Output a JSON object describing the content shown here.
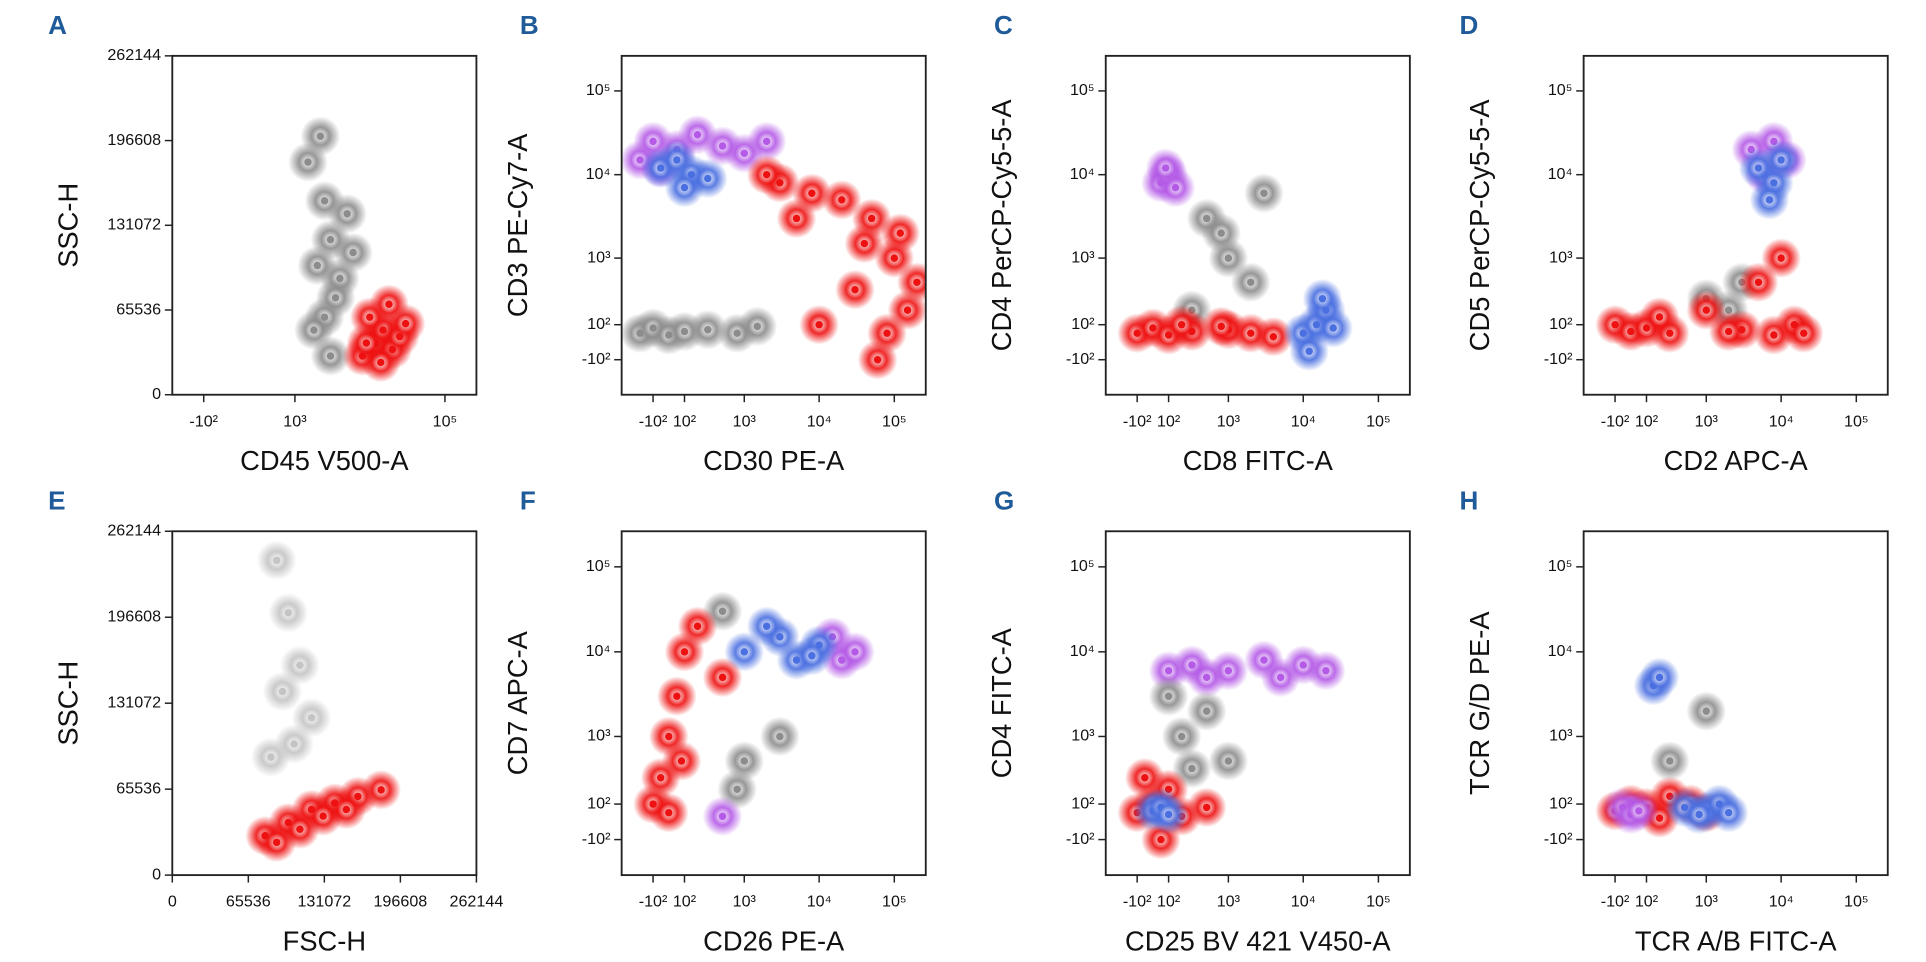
{
  "chart_data": [
    {
      "type": "scatter",
      "title": "A",
      "x_label": "CD45 V500-A",
      "y_label": "SSC-H",
      "xscale": "biexponential",
      "yscale": "linear",
      "xlim": [
        -400,
        262144
      ],
      "ylim": [
        0,
        262144
      ],
      "xticks": [
        {
          "value": -100,
          "label": "-10²"
        },
        {
          "value": 1000,
          "label": "10³"
        },
        {
          "value": 100000,
          "label": "10⁵"
        }
      ],
      "yticks": [
        0,
        65536,
        131072,
        196608,
        262144
      ],
      "series": [
        {
          "color": "#8c8c8c",
          "x": [
            1500,
            2500,
            3000,
            2000,
            4000,
            3500,
            2500,
            5000,
            1800,
            3000,
            6000,
            2200
          ],
          "y": [
            180000,
            150000,
            120000,
            100000,
            90000,
            75000,
            60000,
            140000,
            50000,
            30000,
            110000,
            200000
          ]
        },
        {
          "color": "#ee1111",
          "x": [
            8000,
            12000,
            15000,
            20000,
            10000,
            18000,
            25000,
            14000,
            30000,
            9000
          ],
          "y": [
            30000,
            40000,
            50000,
            35000,
            60000,
            70000,
            45000,
            25000,
            55000,
            40000
          ]
        }
      ]
    },
    {
      "type": "scatter",
      "title": "B",
      "x_label": "CD30 PE-A",
      "y_label": "CD3 PE-Cy7-A",
      "xscale": "biexponential",
      "yscale": "biexponential",
      "xlim": [
        -400,
        262144
      ],
      "ylim": [
        -400,
        262144
      ],
      "xticks": [
        {
          "value": -100,
          "label": "-10²"
        },
        {
          "value": 100,
          "label": "10²"
        },
        {
          "value": 1000,
          "label": "10³"
        },
        {
          "value": 10000,
          "label": "10⁴"
        },
        {
          "value": 100000,
          "label": "10⁵"
        }
      ],
      "yticks": [
        {
          "value": -100,
          "label": "-10²"
        },
        {
          "value": 100,
          "label": "10²"
        },
        {
          "value": 1000,
          "label": "10³"
        },
        {
          "value": 10000,
          "label": "10⁴"
        },
        {
          "value": 100000,
          "label": "10⁵"
        }
      ],
      "series": [
        {
          "color": "#b45ae6",
          "x": [
            -200,
            -100,
            50,
            200,
            500,
            1000,
            2000,
            -50
          ],
          "y": [
            15000,
            25000,
            20000,
            30000,
            22000,
            18000,
            25000,
            12000
          ]
        },
        {
          "color": "#4a6fe0",
          "x": [
            -50,
            50,
            150,
            300,
            100
          ],
          "y": [
            12000,
            15000,
            10000,
            9000,
            7000
          ]
        },
        {
          "color": "#8c8c8c",
          "x": [
            -200,
            -100,
            0,
            100,
            300,
            800,
            1500
          ],
          "y": [
            50,
            80,
            40,
            60,
            70,
            50,
            90
          ]
        },
        {
          "color": "#ee1111",
          "x": [
            3000,
            8000,
            20000,
            50000,
            100000,
            150000,
            5000,
            30000,
            80000,
            2000,
            10000,
            60000,
            120000,
            200000,
            40000
          ],
          "y": [
            8000,
            6000,
            5000,
            3000,
            1000,
            200,
            3000,
            400,
            50,
            10000,
            100,
            -100,
            2000,
            500,
            1500
          ]
        }
      ]
    },
    {
      "type": "scatter",
      "title": "C",
      "x_label": "CD8 FITC-A",
      "y_label": "CD4 PerCP-Cy5-5-A",
      "xscale": "biexponential",
      "yscale": "biexponential",
      "xlim": [
        -400,
        262144
      ],
      "ylim": [
        -400,
        262144
      ],
      "xticks": [
        {
          "value": -100,
          "label": "-10²"
        },
        {
          "value": 100,
          "label": "10²"
        },
        {
          "value": 1000,
          "label": "10³"
        },
        {
          "value": 10000,
          "label": "10⁴"
        },
        {
          "value": 100000,
          "label": "10⁵"
        }
      ],
      "yticks": [
        {
          "value": -100,
          "label": "-10²"
        },
        {
          "value": 100,
          "label": "10²"
        },
        {
          "value": 1000,
          "label": "10³"
        },
        {
          "value": 10000,
          "label": "10⁴"
        },
        {
          "value": 100000,
          "label": "10⁵"
        }
      ],
      "series": [
        {
          "color": "#b45ae6",
          "x": [
            50,
            100,
            150,
            80
          ],
          "y": [
            8000,
            10000,
            7000,
            12000
          ]
        },
        {
          "color": "#8c8c8c",
          "x": [
            500,
            1000,
            2000,
            300,
            3000,
            800
          ],
          "y": [
            3000,
            1000,
            500,
            200,
            6000,
            2000
          ]
        },
        {
          "color": "#ee1111",
          "x": [
            -100,
            0,
            100,
            300,
            1000,
            2000,
            4000,
            200,
            800
          ],
          "y": [
            50,
            80,
            40,
            60,
            70,
            50,
            30,
            100,
            90
          ]
        },
        {
          "color": "#4a6fe0",
          "x": [
            10000,
            15000,
            20000,
            12000,
            25000,
            18000
          ],
          "y": [
            50,
            100,
            200,
            -50,
            80,
            300
          ]
        }
      ]
    },
    {
      "type": "scatter",
      "title": "D",
      "x_label": "CD2 APC-A",
      "y_label": "CD5 PerCP-Cy5-5-A",
      "xscale": "biexponential",
      "yscale": "biexponential",
      "xlim": [
        -400,
        262144
      ],
      "ylim": [
        -400,
        262144
      ],
      "xticks": [
        {
          "value": -100,
          "label": "-10²"
        },
        {
          "value": 100,
          "label": "10²"
        },
        {
          "value": 1000,
          "label": "10³"
        },
        {
          "value": 10000,
          "label": "10⁴"
        },
        {
          "value": 100000,
          "label": "10⁵"
        }
      ],
      "yticks": [
        {
          "value": -100,
          "label": "-10²"
        },
        {
          "value": 100,
          "label": "10²"
        },
        {
          "value": 1000,
          "label": "10³"
        },
        {
          "value": 10000,
          "label": "10⁴"
        },
        {
          "value": 100000,
          "label": "10⁵"
        }
      ],
      "series": [
        {
          "color": "#b45ae6",
          "x": [
            4000,
            8000,
            12000,
            6000
          ],
          "y": [
            20000,
            25000,
            15000,
            10000
          ]
        },
        {
          "color": "#4a6fe0",
          "x": [
            5000,
            8000,
            10000,
            7000
          ],
          "y": [
            12000,
            8000,
            15000,
            5000
          ]
        },
        {
          "color": "#8c8c8c",
          "x": [
            1000,
            2000,
            3000
          ],
          "y": [
            300,
            200,
            500
          ]
        },
        {
          "color": "#ee1111",
          "x": [
            -100,
            0,
            100,
            300,
            1000,
            3000,
            8000,
            15000,
            20000,
            5000,
            10000,
            200,
            2000
          ],
          "y": [
            100,
            60,
            80,
            50,
            200,
            70,
            40,
            100,
            50,
            500,
            1000,
            150,
            60
          ]
        }
      ]
    },
    {
      "type": "scatter",
      "title": "E",
      "x_label": "FSC-H",
      "y_label": "SSC-H",
      "xscale": "linear",
      "yscale": "linear",
      "xlim": [
        0,
        262144
      ],
      "ylim": [
        0,
        262144
      ],
      "xticks": [
        0,
        65536,
        131072,
        196608,
        262144
      ],
      "yticks": [
        0,
        65536,
        131072,
        196608,
        262144
      ],
      "series": [
        {
          "color": "#c4c4c4",
          "x": [
            90000,
            100000,
            110000,
            95000,
            120000,
            105000,
            85000
          ],
          "y": [
            240000,
            200000,
            160000,
            140000,
            120000,
            100000,
            90000
          ]
        },
        {
          "color": "#ee1111",
          "x": [
            80000,
            100000,
            120000,
            140000,
            160000,
            180000,
            110000,
            130000,
            150000,
            90000
          ],
          "y": [
            30000,
            40000,
            50000,
            55000,
            60000,
            65000,
            35000,
            45000,
            50000,
            25000
          ]
        }
      ]
    },
    {
      "type": "scatter",
      "title": "F",
      "x_label": "CD26 PE-A",
      "y_label": "CD7 APC-A",
      "xscale": "biexponential",
      "yscale": "biexponential",
      "xlim": [
        -400,
        262144
      ],
      "ylim": [
        -400,
        262144
      ],
      "xticks": [
        {
          "value": -100,
          "label": "-10²"
        },
        {
          "value": 100,
          "label": "10²"
        },
        {
          "value": 1000,
          "label": "10³"
        },
        {
          "value": 10000,
          "label": "10⁴"
        },
        {
          "value": 100000,
          "label": "10⁵"
        }
      ],
      "yticks": [
        {
          "value": -100,
          "label": "-10²"
        },
        {
          "value": 100,
          "label": "10²"
        },
        {
          "value": 1000,
          "label": "10³"
        },
        {
          "value": 10000,
          "label": "10⁴"
        },
        {
          "value": 100000,
          "label": "10⁵"
        }
      ],
      "series": [
        {
          "color": "#8c8c8c",
          "x": [
            500,
            1000,
            3000,
            800
          ],
          "y": [
            30000,
            500,
            1000,
            200
          ]
        },
        {
          "color": "#b45ae6",
          "x": [
            20000,
            15000,
            30000,
            500
          ],
          "y": [
            8000,
            15000,
            10000,
            30
          ]
        },
        {
          "color": "#4a6fe0",
          "x": [
            1000,
            3000,
            5000,
            10000,
            2000,
            8000
          ],
          "y": [
            10000,
            15000,
            8000,
            12000,
            20000,
            9000
          ]
        },
        {
          "color": "#ee1111",
          "x": [
            -100,
            -50,
            0,
            50,
            100,
            200,
            500,
            0,
            80
          ],
          "y": [
            100,
            300,
            1000,
            3000,
            10000,
            20000,
            5000,
            50,
            500
          ]
        }
      ]
    },
    {
      "type": "scatter",
      "title": "G",
      "x_label": "CD25 BV 421 V450-A",
      "y_label": "CD4 FITC-A",
      "xscale": "biexponential",
      "yscale": "biexponential",
      "xlim": [
        -400,
        262144
      ],
      "ylim": [
        -400,
        262144
      ],
      "xticks": [
        {
          "value": -100,
          "label": "-10²"
        },
        {
          "value": 100,
          "label": "10²"
        },
        {
          "value": 1000,
          "label": "10³"
        },
        {
          "value": 10000,
          "label": "10⁴"
        },
        {
          "value": 100000,
          "label": "10⁵"
        }
      ],
      "yticks": [
        {
          "value": -100,
          "label": "-10²"
        },
        {
          "value": 100,
          "label": "10²"
        },
        {
          "value": 1000,
          "label": "10³"
        },
        {
          "value": 10000,
          "label": "10⁴"
        },
        {
          "value": 100000,
          "label": "10⁵"
        }
      ],
      "series": [
        {
          "color": "#b45ae6",
          "x": [
            100,
            300,
            1000,
            3000,
            10000,
            5000,
            500,
            20000
          ],
          "y": [
            6000,
            7000,
            6000,
            8000,
            7000,
            5000,
            5000,
            6000
          ]
        },
        {
          "color": "#8c8c8c",
          "x": [
            100,
            200,
            300,
            500,
            1000
          ],
          "y": [
            3000,
            1000,
            400,
            2000,
            500
          ]
        },
        {
          "color": "#ee1111",
          "x": [
            -100,
            0,
            100,
            200,
            50,
            -50,
            500
          ],
          "y": [
            50,
            100,
            200,
            30,
            -100,
            300,
            80
          ]
        },
        {
          "color": "#4a6fe0",
          "x": [
            0,
            50,
            100
          ],
          "y": [
            60,
            80,
            40
          ]
        }
      ]
    },
    {
      "type": "scatter",
      "title": "H",
      "x_label": "TCR A/B FITC-A",
      "y_label": "TCR G/D PE-A",
      "xscale": "biexponential",
      "yscale": "biexponential",
      "xlim": [
        -400,
        262144
      ],
      "ylim": [
        -400,
        262144
      ],
      "xticks": [
        {
          "value": -100,
          "label": "-10²"
        },
        {
          "value": 100,
          "label": "10²"
        },
        {
          "value": 1000,
          "label": "10³"
        },
        {
          "value": 10000,
          "label": "10⁴"
        },
        {
          "value": 100000,
          "label": "10⁵"
        }
      ],
      "yticks": [
        {
          "value": -100,
          "label": "-10²"
        },
        {
          "value": 100,
          "label": "10²"
        },
        {
          "value": 1000,
          "label": "10³"
        },
        {
          "value": 10000,
          "label": "10⁴"
        },
        {
          "value": 100000,
          "label": "10⁵"
        }
      ],
      "series": [
        {
          "color": "#8c8c8c",
          "x": [
            1000,
            300
          ],
          "y": [
            2000,
            500
          ]
        },
        {
          "color": "#ee1111",
          "x": [
            -100,
            0,
            100,
            300,
            600,
            1000,
            200
          ],
          "y": [
            60,
            100,
            80,
            150,
            100,
            50,
            20
          ]
        },
        {
          "color": "#b45ae6",
          "x": [
            -50,
            0,
            50
          ],
          "y": [
            80,
            40,
            60
          ]
        },
        {
          "color": "#4a6fe0",
          "x": [
            1000,
            1500,
            2000,
            500,
            800,
            150,
            200
          ],
          "y": [
            60,
            100,
            50,
            80,
            40,
            4000,
            5000
          ]
        }
      ]
    }
  ]
}
